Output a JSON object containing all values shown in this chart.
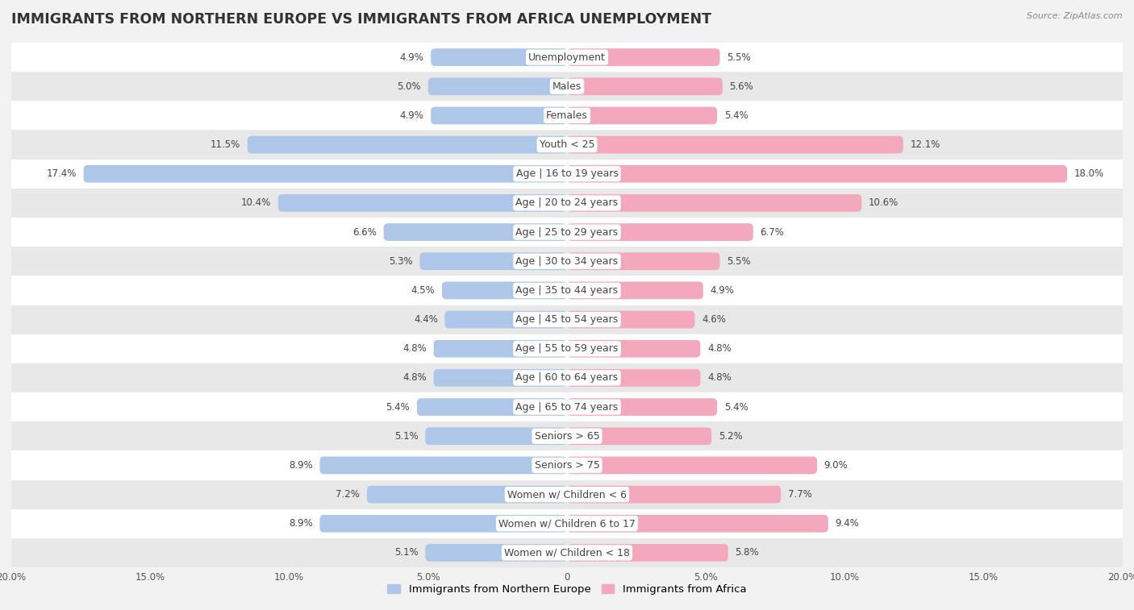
{
  "title": "IMMIGRANTS FROM NORTHERN EUROPE VS IMMIGRANTS FROM AFRICA UNEMPLOYMENT",
  "source": "Source: ZipAtlas.com",
  "categories": [
    "Unemployment",
    "Males",
    "Females",
    "Youth < 25",
    "Age | 16 to 19 years",
    "Age | 20 to 24 years",
    "Age | 25 to 29 years",
    "Age | 30 to 34 years",
    "Age | 35 to 44 years",
    "Age | 45 to 54 years",
    "Age | 55 to 59 years",
    "Age | 60 to 64 years",
    "Age | 65 to 74 years",
    "Seniors > 65",
    "Seniors > 75",
    "Women w/ Children < 6",
    "Women w/ Children 6 to 17",
    "Women w/ Children < 18"
  ],
  "left_values": [
    4.9,
    5.0,
    4.9,
    11.5,
    17.4,
    10.4,
    6.6,
    5.3,
    4.5,
    4.4,
    4.8,
    4.8,
    5.4,
    5.1,
    8.9,
    7.2,
    8.9,
    5.1
  ],
  "right_values": [
    5.5,
    5.6,
    5.4,
    12.1,
    18.0,
    10.6,
    6.7,
    5.5,
    4.9,
    4.6,
    4.8,
    4.8,
    5.4,
    5.2,
    9.0,
    7.7,
    9.4,
    5.8
  ],
  "left_color": "#aec6e8",
  "right_color": "#f4a8bb",
  "axis_max": 20.0,
  "legend_left": "Immigrants from Northern Europe",
  "legend_right": "Immigrants from Africa",
  "background_color": "#f2f2f2",
  "row_colors_odd": "#ffffff",
  "row_colors_even": "#e8e8e8",
  "bar_height": 0.6,
  "label_fontsize": 9.0,
  "value_fontsize": 8.5,
  "title_fontsize": 12.5
}
